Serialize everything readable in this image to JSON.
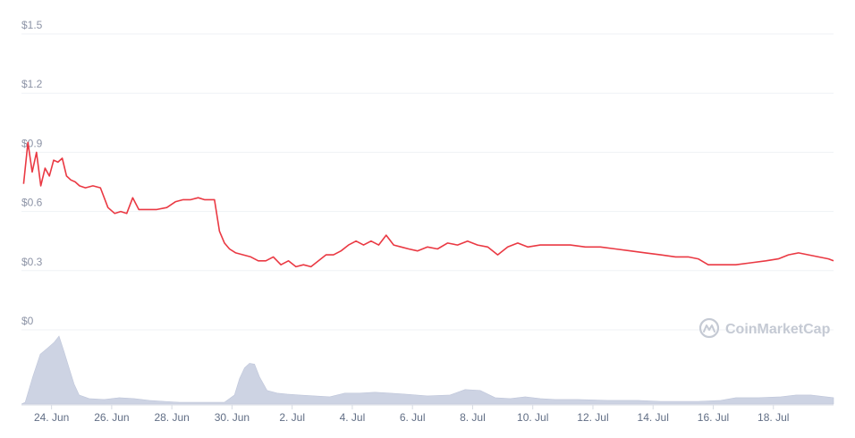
{
  "chart_data": {
    "type": "line",
    "y_axis": {
      "ticks": [
        0,
        0.3,
        0.6,
        0.9,
        1.2,
        1.5
      ],
      "tick_labels": [
        "$0",
        "$0.3",
        "$0.6",
        "$0.9",
        "$1.2",
        "$1.5"
      ],
      "ylim": [
        0,
        1.5
      ]
    },
    "x_axis": {
      "range": [
        "2021-06-23",
        "2021-07-20"
      ],
      "ticks": [
        "2021-06-24",
        "2021-06-26",
        "2021-06-28",
        "2021-06-30",
        "2021-07-02",
        "2021-07-04",
        "2021-07-06",
        "2021-07-08",
        "2021-07-10",
        "2021-07-12",
        "2021-07-14",
        "2021-07-16",
        "2021-07-18"
      ],
      "tick_labels": [
        "24. Jun",
        "26. Jun",
        "28. Jun",
        "30. Jun",
        "2. Jul",
        "4. Jul",
        "6. Jul",
        "8. Jul",
        "10. Jul",
        "12. Jul",
        "14. Jul",
        "16. Jul",
        "18. Jul"
      ]
    },
    "grid": true,
    "legend": "none",
    "series": [
      {
        "type": "line",
        "color": "#ea3943",
        "x": [
          "2021-06-23",
          "2021-06-23",
          "2021-06-23",
          "2021-06-23",
          "2021-06-23",
          "2021-06-23",
          "2021-06-23",
          "2021-06-24",
          "2021-06-24",
          "2021-06-24",
          "2021-06-24",
          "2021-06-24",
          "2021-06-24",
          "2021-06-24",
          "2021-06-25",
          "2021-06-25",
          "2021-06-25",
          "2021-06-25",
          "2021-06-26",
          "2021-06-26",
          "2021-06-26",
          "2021-06-26",
          "2021-06-26",
          "2021-06-27",
          "2021-06-27",
          "2021-06-27",
          "2021-06-28",
          "2021-06-28",
          "2021-06-28",
          "2021-06-28",
          "2021-06-29",
          "2021-06-29",
          "2021-06-29",
          "2021-06-29",
          "2021-06-29",
          "2021-06-29",
          "2021-06-30",
          "2021-06-30",
          "2021-06-30",
          "2021-06-30",
          "2021-07-01",
          "2021-07-01",
          "2021-07-01",
          "2021-07-01",
          "2021-07-02",
          "2021-07-02",
          "2021-07-02",
          "2021-07-02",
          "2021-07-03",
          "2021-07-03",
          "2021-07-03",
          "2021-07-03",
          "2021-07-04",
          "2021-07-04",
          "2021-07-04",
          "2021-07-04",
          "2021-07-05",
          "2021-07-05",
          "2021-07-05",
          "2021-07-05",
          "2021-07-06",
          "2021-07-06",
          "2021-07-06",
          "2021-07-07",
          "2021-07-07",
          "2021-07-07",
          "2021-07-08",
          "2021-07-08",
          "2021-07-08",
          "2021-07-09",
          "2021-07-09",
          "2021-07-09",
          "2021-07-10",
          "2021-07-10",
          "2021-07-11",
          "2021-07-11",
          "2021-07-12",
          "2021-07-12",
          "2021-07-13",
          "2021-07-13",
          "2021-07-14",
          "2021-07-14",
          "2021-07-15",
          "2021-07-15",
          "2021-07-15",
          "2021-07-16",
          "2021-07-16",
          "2021-07-17",
          "2021-07-17",
          "2021-07-18",
          "2021-07-18",
          "2021-07-18",
          "2021-07-19",
          "2021-07-19",
          "2021-07-19",
          "2021-07-20"
        ],
        "y": [
          0.74,
          0.95,
          0.8,
          0.9,
          0.73,
          0.82,
          0.78,
          0.86,
          0.85,
          0.87,
          0.78,
          0.76,
          0.75,
          0.73,
          0.72,
          0.73,
          0.72,
          0.62,
          0.59,
          0.6,
          0.59,
          0.67,
          0.61,
          0.61,
          0.61,
          0.62,
          0.65,
          0.66,
          0.66,
          0.67,
          0.66,
          0.66,
          0.66,
          0.5,
          0.44,
          0.41,
          0.39,
          0.38,
          0.37,
          0.35,
          0.35,
          0.37,
          0.33,
          0.35,
          0.32,
          0.33,
          0.32,
          0.35,
          0.38,
          0.38,
          0.4,
          0.43,
          0.45,
          0.43,
          0.45,
          0.43,
          0.48,
          0.43,
          0.42,
          0.41,
          0.4,
          0.42,
          0.41,
          0.44,
          0.43,
          0.45,
          0.43,
          0.42,
          0.38,
          0.42,
          0.44,
          0.42,
          0.43,
          0.43,
          0.43,
          0.42,
          0.42,
          0.41,
          0.4,
          0.39,
          0.38,
          0.37,
          0.37,
          0.36,
          0.33,
          0.33,
          0.33,
          0.34,
          0.35,
          0.36,
          0.38,
          0.39,
          0.38,
          0.37,
          0.36,
          0.35
        ]
      },
      {
        "type": "area",
        "color": "#cdd3e3",
        "x": [
          "2021-06-23",
          "2021-06-23",
          "2021-06-23",
          "2021-06-23",
          "2021-06-24",
          "2021-06-24",
          "2021-06-24",
          "2021-06-24",
          "2021-06-24",
          "2021-06-24",
          "2021-06-25",
          "2021-06-25",
          "2021-06-26",
          "2021-06-26",
          "2021-06-27",
          "2021-06-27",
          "2021-06-28",
          "2021-06-28",
          "2021-06-29",
          "2021-06-29",
          "2021-06-30",
          "2021-06-30",
          "2021-06-30",
          "2021-06-30",
          "2021-06-30",
          "2021-06-30",
          "2021-07-01",
          "2021-07-01",
          "2021-07-01",
          "2021-07-02",
          "2021-07-02",
          "2021-07-03",
          "2021-07-03",
          "2021-07-04",
          "2021-07-04",
          "2021-07-05",
          "2021-07-05",
          "2021-07-06",
          "2021-07-07",
          "2021-07-07",
          "2021-07-08",
          "2021-07-08",
          "2021-07-09",
          "2021-07-09",
          "2021-07-10",
          "2021-07-10",
          "2021-07-11",
          "2021-07-12",
          "2021-07-13",
          "2021-07-14",
          "2021-07-14",
          "2021-07-15",
          "2021-07-16",
          "2021-07-16",
          "2021-07-17",
          "2021-07-18",
          "2021-07-18",
          "2021-07-19",
          "2021-07-19",
          "2021-07-20"
        ],
        "y": [
          2,
          30,
          55,
          62,
          68,
          75,
          58,
          40,
          22,
          10,
          6,
          5,
          7,
          6,
          4,
          3,
          2,
          2,
          2,
          2,
          10,
          28,
          40,
          45,
          44,
          30,
          15,
          12,
          11,
          10,
          9,
          8,
          12,
          12,
          13,
          12,
          11,
          9,
          10,
          16,
          15,
          7,
          6,
          8,
          6,
          5,
          5,
          4,
          4,
          3,
          3,
          3,
          4,
          7,
          7,
          8,
          10,
          10,
          8,
          7
        ]
      }
    ]
  },
  "watermark": {
    "brand": "CoinMarketCap",
    "icon": "coinmarketcap-logo-icon"
  }
}
